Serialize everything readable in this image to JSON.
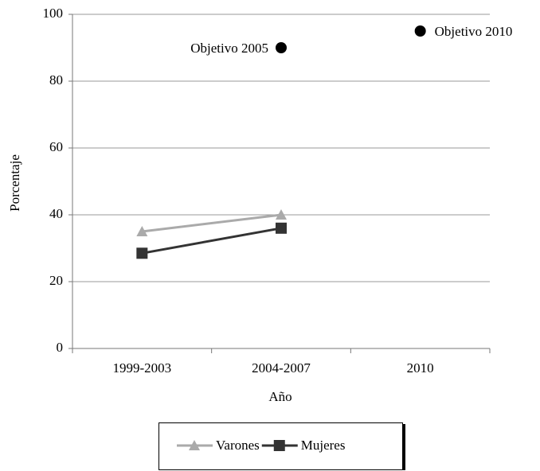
{
  "chart_data": {
    "type": "line",
    "categories": [
      "1999-2003",
      "2004-2007",
      "2010"
    ],
    "series": [
      {
        "name": "Varones",
        "color": "#aaaaaa",
        "marker": "triangle",
        "values": [
          35,
          40,
          null
        ]
      },
      {
        "name": "Mujeres",
        "color": "#333333",
        "marker": "square",
        "values": [
          28.5,
          36,
          null
        ]
      }
    ],
    "annotations": [
      {
        "text": "Objetivo 2005",
        "x": "2004-2007",
        "value": 90
      },
      {
        "text": "Objetivo 2010",
        "x": "2010",
        "value": 95
      }
    ],
    "xlabel": "Año",
    "ylabel": "Porcentaje",
    "ylim": [
      0,
      100
    ],
    "yticks": [
      0,
      20,
      40,
      60,
      80,
      100
    ],
    "grid": true,
    "legend": "bottom"
  }
}
